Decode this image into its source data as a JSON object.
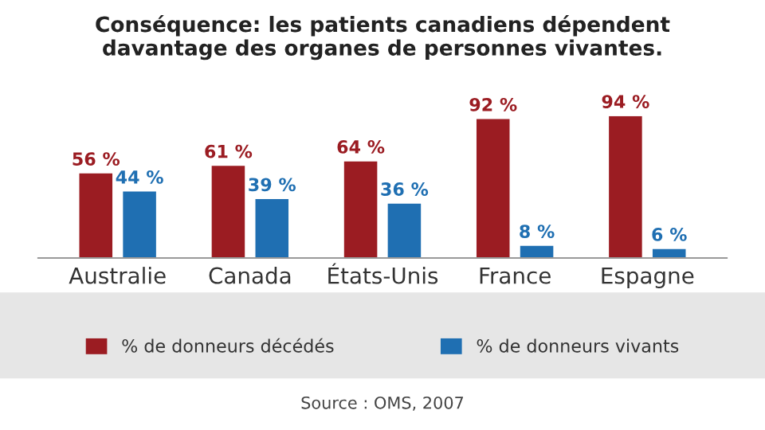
{
  "chart_data": {
    "type": "bar",
    "title": "Conséquence: les patients canadiens dépendent\ndavantage des organes de personnes vivantes.",
    "categories": [
      "Australie",
      "Canada",
      "États-Unis",
      "France",
      "Espagne"
    ],
    "series": [
      {
        "name": "% de donneurs décédés",
        "color": "#9b1c22",
        "values": [
          56,
          61,
          64,
          92,
          94
        ],
        "value_labels": [
          "56 %",
          "61 %",
          "64 %",
          "92 %",
          "94 %"
        ]
      },
      {
        "name": "% de donneurs vivants",
        "color": "#1f6fb2",
        "values": [
          44,
          39,
          36,
          8,
          6
        ],
        "value_labels": [
          "44 %",
          "39 %",
          "36 %",
          "8 %",
          "6 %"
        ]
      }
    ],
    "legend": "bottom",
    "grid": false,
    "annotations": [
      "Source : OMS, 2007"
    ]
  }
}
